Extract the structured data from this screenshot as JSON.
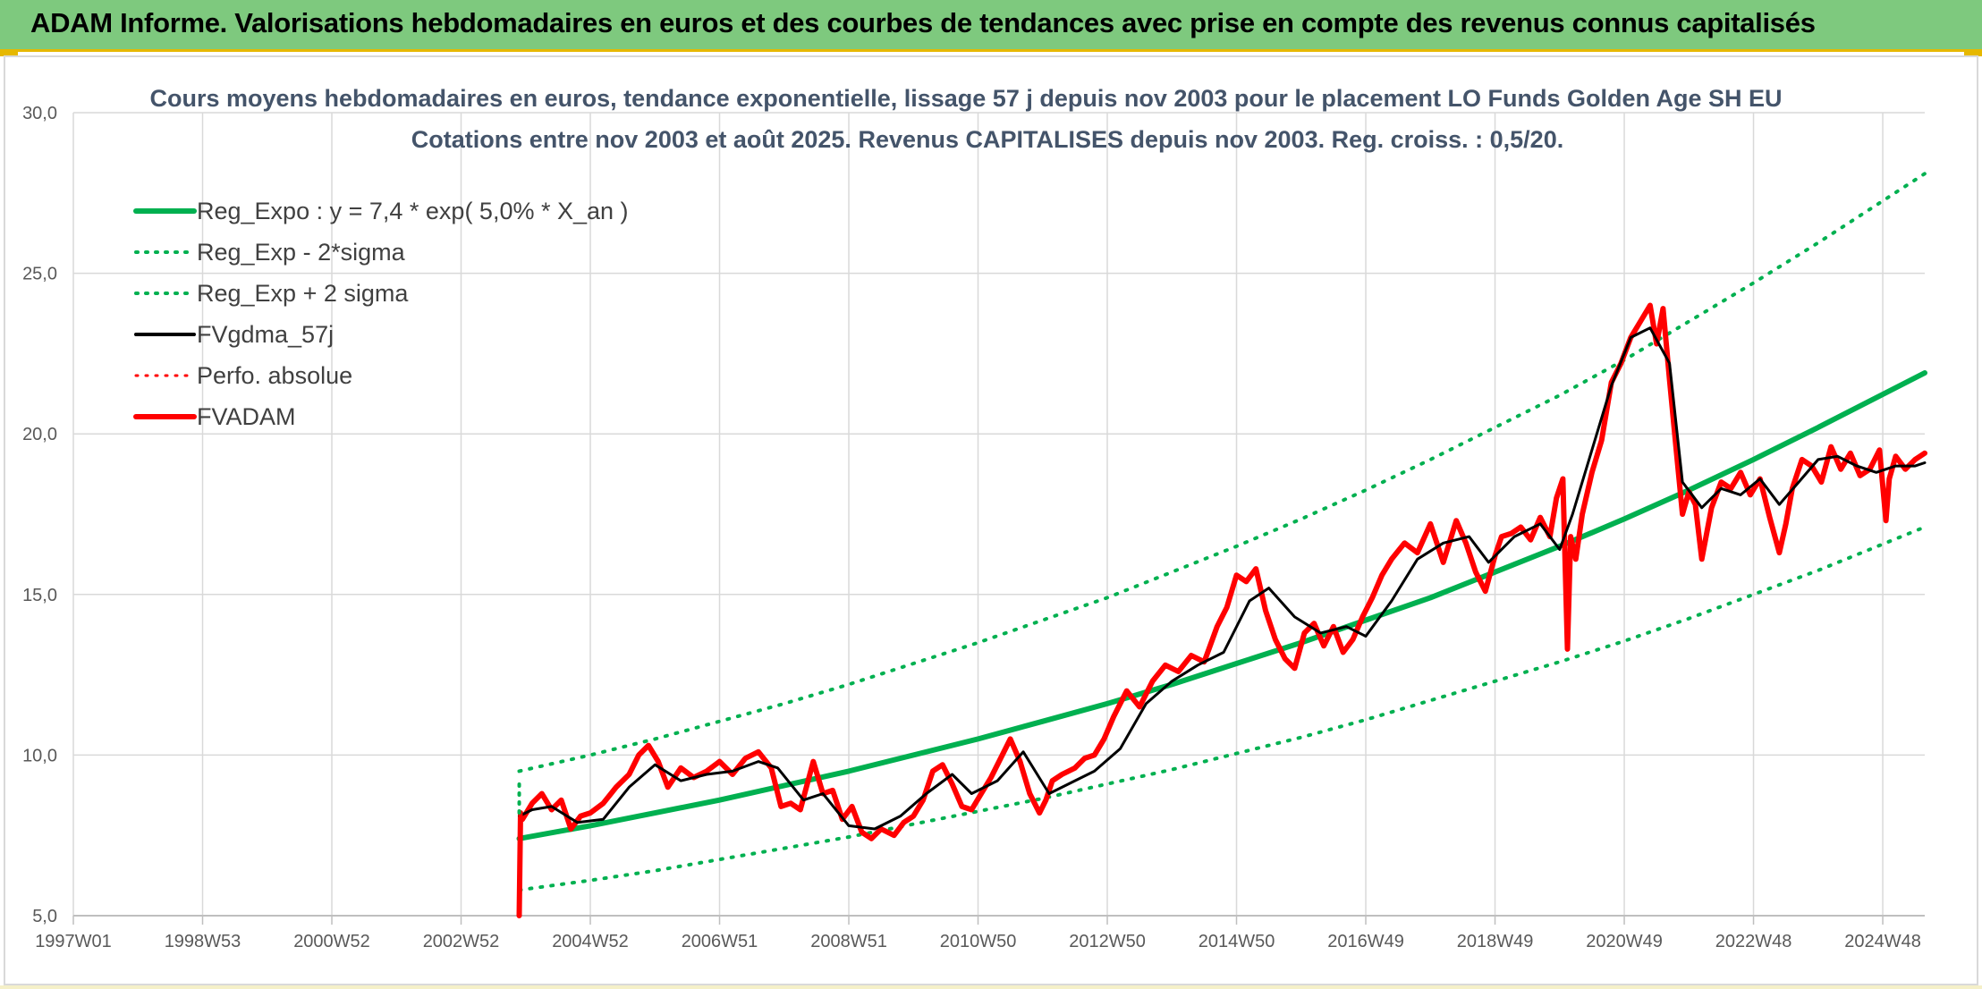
{
  "header": {
    "title": "ADAM Informe. Valorisations hebdomadaires en euros et des courbes de tendances avec prise en compte des revenus connus capitalisés"
  },
  "colors": {
    "banner": "#7ec97e",
    "trend": "#00b050",
    "price": "#ff0000",
    "smooth": "#000000",
    "grid": "#d9d9d9"
  },
  "chart_data": {
    "type": "line",
    "title_line1": "Cours moyens hebdomadaires en euros, tendance exponentielle, lissage 57 j depuis nov 2003 pour le placement LO Funds Golden Age SH EU",
    "title_line2": "Cotations entre nov 2003 et août 2025. Revenus CAPITALISES depuis nov 2003. Reg. croiss. : 0,5/20.",
    "ylim": [
      5,
      30
    ],
    "yticks": [
      "5,0",
      "10,0",
      "15,0",
      "20,0",
      "25,0",
      "30,0"
    ],
    "xlim": [
      1997.0,
      2025.65
    ],
    "xticks": [
      {
        "label": "1997W01",
        "x": 1997.0
      },
      {
        "label": "1998W53",
        "x": 1999.0
      },
      {
        "label": "2000W52",
        "x": 2001.0
      },
      {
        "label": "2002W52",
        "x": 2003.0
      },
      {
        "label": "2004W52",
        "x": 2005.0
      },
      {
        "label": "2006W51",
        "x": 2007.0
      },
      {
        "label": "2008W51",
        "x": 2009.0
      },
      {
        "label": "2010W50",
        "x": 2011.0
      },
      {
        "label": "2012W50",
        "x": 2013.0
      },
      {
        "label": "2014W50",
        "x": 2015.0
      },
      {
        "label": "2016W49",
        "x": 2017.0
      },
      {
        "label": "2018W49",
        "x": 2019.0
      },
      {
        "label": "2020W49",
        "x": 2021.0
      },
      {
        "label": "2022W48",
        "x": 2023.0
      },
      {
        "label": "2024W48",
        "x": 2025.0
      }
    ],
    "legend": [
      {
        "label": "Reg_Expo : y = 7,4 * exp( 5,0% *  X_an )",
        "color": "#00b050",
        "style": "solid",
        "width": 6
      },
      {
        "label": "Reg_Exp - 2*sigma",
        "color": "#00b050",
        "style": "dotted",
        "width": 4
      },
      {
        "label": "Reg_Exp + 2 sigma",
        "color": "#00b050",
        "style": "dotted",
        "width": 4
      },
      {
        "label": "FVgdma_57j",
        "color": "#000000",
        "style": "solid",
        "width": 4
      },
      {
        "label": "Perfo. absolue",
        "color": "#ff0000",
        "style": "dotted",
        "width": 3
      },
      {
        "label": "FVADAM",
        "color": "#ff0000",
        "style": "solid",
        "width": 6
      }
    ],
    "series": [
      {
        "name": "Reg_Expo : y = 7,4 * exp( 5,0% *  X_an )",
        "x": [
          2003.9,
          2005.0,
          2006.0,
          2007.0,
          2008.0,
          2009.0,
          2010.0,
          2011.0,
          2012.0,
          2013.0,
          2014.0,
          2015.0,
          2016.0,
          2017.0,
          2018.0,
          2019.0,
          2020.0,
          2021.0,
          2022.0,
          2023.0,
          2024.0,
          2025.65
        ],
        "y": [
          7.4,
          7.8,
          8.2,
          8.6,
          9.05,
          9.5,
          10.0,
          10.5,
          11.05,
          11.6,
          12.2,
          12.85,
          13.5,
          14.2,
          14.9,
          15.7,
          16.5,
          17.35,
          18.25,
          19.2,
          20.2,
          21.9
        ]
      },
      {
        "name": "Reg_Exp - 2*sigma",
        "x": [
          2003.9,
          2005.0,
          2006.0,
          2007.0,
          2008.0,
          2009.0,
          2010.0,
          2011.0,
          2012.0,
          2013.0,
          2014.0,
          2015.0,
          2016.0,
          2017.0,
          2018.0,
          2019.0,
          2020.0,
          2021.0,
          2022.0,
          2023.0,
          2024.0,
          2025.65
        ],
        "y": [
          5.8,
          6.1,
          6.4,
          6.75,
          7.1,
          7.45,
          7.85,
          8.25,
          8.65,
          9.1,
          9.55,
          10.05,
          10.55,
          11.1,
          11.7,
          12.3,
          12.9,
          13.55,
          14.25,
          15.0,
          15.75,
          17.1
        ]
      },
      {
        "name": "Reg_Exp + 2 sigma",
        "x": [
          2003.9,
          2005.0,
          2006.0,
          2007.0,
          2008.0,
          2009.0,
          2010.0,
          2011.0,
          2012.0,
          2013.0,
          2014.0,
          2015.0,
          2016.0,
          2017.0,
          2018.0,
          2019.0,
          2020.0,
          2021.0,
          2022.0,
          2023.0,
          2024.0,
          2025.65
        ],
        "y": [
          9.5,
          10.0,
          10.5,
          11.05,
          11.6,
          12.2,
          12.85,
          13.5,
          14.2,
          14.9,
          15.7,
          16.5,
          17.35,
          18.25,
          19.2,
          20.2,
          21.2,
          22.3,
          23.5,
          24.7,
          25.95,
          28.1
        ]
      },
      {
        "name": "FVgdma_57j",
        "x": [
          2003.9,
          2004.1,
          2004.4,
          2004.8,
          2005.2,
          2005.6,
          2006.0,
          2006.4,
          2006.8,
          2007.2,
          2007.6,
          2007.9,
          2008.3,
          2008.6,
          2009.0,
          2009.4,
          2009.8,
          2010.2,
          2010.6,
          2010.9,
          2011.3,
          2011.7,
          2012.1,
          2012.5,
          2012.8,
          2013.2,
          2013.6,
          2014.0,
          2014.4,
          2014.8,
          2015.2,
          2015.5,
          2015.9,
          2016.3,
          2016.7,
          2017.0,
          2017.4,
          2017.8,
          2018.2,
          2018.6,
          2018.9,
          2019.3,
          2019.7,
          2020.0,
          2020.2,
          2020.5,
          2020.8,
          2021.1,
          2021.4,
          2021.7,
          2021.9,
          2022.2,
          2022.5,
          2022.8,
          2023.1,
          2023.4,
          2023.7,
          2024.0,
          2024.3,
          2024.6,
          2024.9,
          2025.2,
          2025.5,
          2025.65
        ],
        "y": [
          8.1,
          8.3,
          8.4,
          7.9,
          8.0,
          9.0,
          9.7,
          9.2,
          9.4,
          9.5,
          9.8,
          9.6,
          8.6,
          8.8,
          7.8,
          7.7,
          8.1,
          8.8,
          9.4,
          8.8,
          9.2,
          10.1,
          8.8,
          9.2,
          9.5,
          10.2,
          11.6,
          12.3,
          12.8,
          13.2,
          14.8,
          15.2,
          14.3,
          13.8,
          14.0,
          13.7,
          14.8,
          16.1,
          16.6,
          16.8,
          16.0,
          16.8,
          17.2,
          16.4,
          17.5,
          19.5,
          21.5,
          23.0,
          23.3,
          22.2,
          18.5,
          17.7,
          18.3,
          18.1,
          18.6,
          17.8,
          18.5,
          19.2,
          19.3,
          19.0,
          18.8,
          19.0,
          19.0,
          19.1
        ]
      },
      {
        "name": "FVADAM",
        "x": [
          2003.9,
          2003.92,
          2003.95,
          2004.1,
          2004.25,
          2004.4,
          2004.55,
          2004.7,
          2004.85,
          2005.0,
          2005.2,
          2005.4,
          2005.6,
          2005.75,
          2005.9,
          2006.05,
          2006.2,
          2006.4,
          2006.6,
          2006.8,
          2007.0,
          2007.2,
          2007.4,
          2007.6,
          2007.8,
          2007.95,
          2008.1,
          2008.25,
          2008.45,
          2008.6,
          2008.75,
          2008.9,
          2009.05,
          2009.2,
          2009.35,
          2009.5,
          2009.7,
          2009.85,
          2010.0,
          2010.15,
          2010.3,
          2010.45,
          2010.6,
          2010.75,
          2010.9,
          2011.05,
          2011.2,
          2011.35,
          2011.5,
          2011.65,
          2011.8,
          2011.95,
          2012.05,
          2012.15,
          2012.3,
          2012.5,
          2012.65,
          2012.8,
          2012.95,
          2013.1,
          2013.3,
          2013.5,
          2013.7,
          2013.9,
          2014.1,
          2014.3,
          2014.5,
          2014.7,
          2014.85,
          2015.0,
          2015.15,
          2015.3,
          2015.45,
          2015.6,
          2015.75,
          2015.9,
          2016.05,
          2016.2,
          2016.35,
          2016.5,
          2016.65,
          2016.8,
          2016.95,
          2017.1,
          2017.25,
          2017.4,
          2017.6,
          2017.8,
          2018.0,
          2018.2,
          2018.4,
          2018.55,
          2018.7,
          2018.85,
          2019.0,
          2019.1,
          2019.25,
          2019.4,
          2019.55,
          2019.7,
          2019.85,
          2019.95,
          2020.05,
          2020.12,
          2020.17,
          2020.25,
          2020.35,
          2020.5,
          2020.65,
          2020.8,
          2020.95,
          2021.1,
          2021.25,
          2021.4,
          2021.5,
          2021.6,
          2021.7,
          2021.8,
          2021.9,
          2022.0,
          2022.1,
          2022.2,
          2022.35,
          2022.5,
          2022.65,
          2022.8,
          2022.95,
          2023.1,
          2023.25,
          2023.4,
          2023.5,
          2023.6,
          2023.75,
          2023.9,
          2024.05,
          2024.2,
          2024.35,
          2024.5,
          2024.65,
          2024.8,
          2024.95,
          2025.05,
          2025.1,
          2025.2,
          2025.35,
          2025.5,
          2025.65
        ],
        "y": [
          5.0,
          8.2,
          8.0,
          8.5,
          8.8,
          8.3,
          8.6,
          7.7,
          8.1,
          8.2,
          8.5,
          9.0,
          9.4,
          10.0,
          10.3,
          9.8,
          9.0,
          9.6,
          9.3,
          9.5,
          9.8,
          9.4,
          9.9,
          10.1,
          9.6,
          8.4,
          8.5,
          8.3,
          9.8,
          8.8,
          8.9,
          8.0,
          8.4,
          7.6,
          7.4,
          7.7,
          7.5,
          7.9,
          8.1,
          8.6,
          9.5,
          9.7,
          9.1,
          8.4,
          8.3,
          8.8,
          9.3,
          9.9,
          10.5,
          9.8,
          8.8,
          8.2,
          8.6,
          9.2,
          9.4,
          9.6,
          9.9,
          10.0,
          10.5,
          11.2,
          12.0,
          11.5,
          12.3,
          12.8,
          12.6,
          13.1,
          12.9,
          14.0,
          14.6,
          15.6,
          15.4,
          15.8,
          14.5,
          13.6,
          13.0,
          12.7,
          13.8,
          14.1,
          13.4,
          14.0,
          13.2,
          13.6,
          14.3,
          14.9,
          15.6,
          16.1,
          16.6,
          16.3,
          17.2,
          16.0,
          17.3,
          16.6,
          15.7,
          15.1,
          16.2,
          16.8,
          16.9,
          17.1,
          16.7,
          17.4,
          16.8,
          18.0,
          18.6,
          13.3,
          16.8,
          16.1,
          17.5,
          18.8,
          19.8,
          21.6,
          22.2,
          23.0,
          23.5,
          24.0,
          22.8,
          23.9,
          21.7,
          19.6,
          17.5,
          18.2,
          17.8,
          16.1,
          17.7,
          18.5,
          18.3,
          18.8,
          18.1,
          18.6,
          17.4,
          16.3,
          17.2,
          18.3,
          19.2,
          19.0,
          18.5,
          19.6,
          18.9,
          19.4,
          18.7,
          18.9,
          19.5,
          17.3,
          18.6,
          19.3,
          18.9,
          19.2,
          19.4
        ]
      }
    ]
  }
}
